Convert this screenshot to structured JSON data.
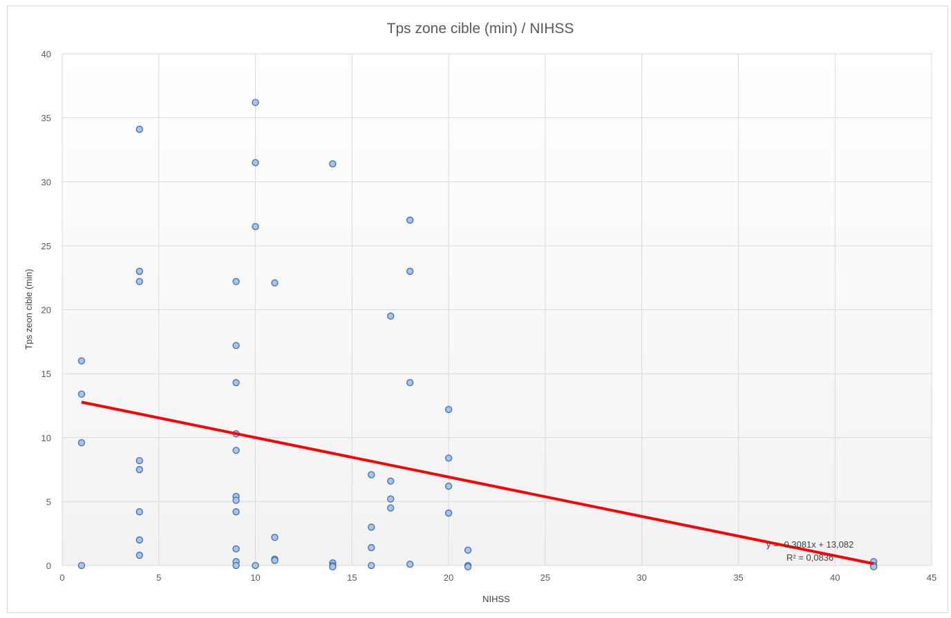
{
  "chart_data": {
    "type": "scatter",
    "title": "Tps zone cible (min) / NIHSS",
    "xlabel": "NIHSS",
    "ylabel": "Tps zeon cible (min)",
    "xlim": [
      0,
      45
    ],
    "ylim": [
      0,
      40
    ],
    "x_ticks": [
      "0",
      "5",
      "10",
      "15",
      "20",
      "25",
      "30",
      "35",
      "40",
      "45"
    ],
    "y_ticks": [
      "0",
      "5",
      "10",
      "15",
      "20",
      "25",
      "30",
      "35",
      "40"
    ],
    "grid": true,
    "series": [
      {
        "points": [
          [
            1,
            16.0
          ],
          [
            1,
            13.4
          ],
          [
            1,
            9.6
          ],
          [
            1,
            0.0
          ],
          [
            4,
            34.1
          ],
          [
            4,
            23.0
          ],
          [
            4,
            22.2
          ],
          [
            4,
            8.2
          ],
          [
            4,
            7.5
          ],
          [
            4,
            4.2
          ],
          [
            4,
            2.0
          ],
          [
            4,
            0.8
          ],
          [
            9,
            22.2
          ],
          [
            9,
            17.2
          ],
          [
            9,
            14.3
          ],
          [
            9,
            10.3
          ],
          [
            9,
            9.0
          ],
          [
            9,
            5.4
          ],
          [
            9,
            5.1
          ],
          [
            9,
            4.2
          ],
          [
            9,
            1.3
          ],
          [
            9,
            0.3
          ],
          [
            9,
            0.0
          ],
          [
            10,
            36.2
          ],
          [
            10,
            31.5
          ],
          [
            10,
            26.5
          ],
          [
            10,
            0.0
          ],
          [
            11,
            22.1
          ],
          [
            11,
            2.2
          ],
          [
            11,
            0.5
          ],
          [
            11,
            0.4
          ],
          [
            14,
            31.4
          ],
          [
            14,
            0.2
          ],
          [
            14,
            0.0
          ],
          [
            14,
            -0.1
          ],
          [
            16,
            7.1
          ],
          [
            16,
            3.0
          ],
          [
            16,
            1.4
          ],
          [
            16,
            0.0
          ],
          [
            17,
            19.5
          ],
          [
            17,
            6.6
          ],
          [
            17,
            5.2
          ],
          [
            17,
            4.5
          ],
          [
            18,
            27.0
          ],
          [
            18,
            23.0
          ],
          [
            18,
            14.3
          ],
          [
            18,
            0.1
          ],
          [
            20,
            12.2
          ],
          [
            20,
            8.4
          ],
          [
            20,
            6.2
          ],
          [
            20,
            4.1
          ],
          [
            21,
            1.2
          ],
          [
            21,
            0.0
          ],
          [
            21,
            -0.1
          ],
          [
            42,
            0.3
          ],
          [
            42,
            0.0
          ],
          [
            42,
            -0.1
          ]
        ],
        "color": "#a9c4e8",
        "stroke": "#3d6fb0"
      }
    ],
    "trendline": {
      "slope": -0.3081,
      "intercept": 13.082,
      "x_range": [
        1,
        42
      ],
      "color": "#ff0000",
      "equation": "y = -0,3081x + 13,082",
      "r_squared": "R² = 0,0836"
    }
  }
}
